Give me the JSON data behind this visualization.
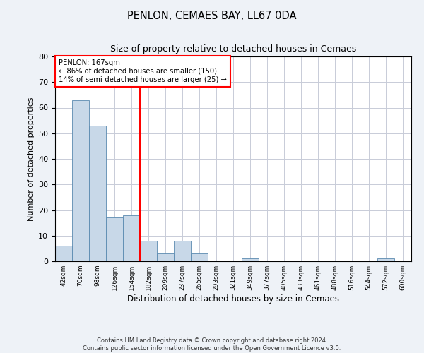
{
  "title": "PENLON, CEMAES BAY, LL67 0DA",
  "subtitle": "Size of property relative to detached houses in Cemaes",
  "xlabel": "Distribution of detached houses by size in Cemaes",
  "ylabel": "Number of detached properties",
  "bar_color": "#c8d8e8",
  "bar_edge_color": "#5a8ab0",
  "categories": [
    "42sqm",
    "70sqm",
    "98sqm",
    "126sqm",
    "154sqm",
    "182sqm",
    "209sqm",
    "237sqm",
    "265sqm",
    "293sqm",
    "321sqm",
    "349sqm",
    "377sqm",
    "405sqm",
    "433sqm",
    "461sqm",
    "488sqm",
    "516sqm",
    "544sqm",
    "572sqm",
    "600sqm"
  ],
  "values": [
    6,
    63,
    53,
    17,
    18,
    8,
    3,
    8,
    3,
    0,
    0,
    1,
    0,
    0,
    0,
    0,
    0,
    0,
    0,
    1,
    0
  ],
  "ylim": [
    0,
    80
  ],
  "yticks": [
    0,
    10,
    20,
    30,
    40,
    50,
    60,
    70,
    80
  ],
  "penlon_label": "PENLON: 167sqm",
  "annotation_line1": "← 86% of detached houses are smaller (150)",
  "annotation_line2": "14% of semi-detached houses are larger (25) →",
  "annotation_box_color": "white",
  "annotation_box_edge_color": "red",
  "vline_color": "red",
  "vline_bin_index": 4.5,
  "footer1": "Contains HM Land Registry data © Crown copyright and database right 2024.",
  "footer2": "Contains public sector information licensed under the Open Government Licence v3.0.",
  "background_color": "#eef2f7",
  "plot_bg_color": "white",
  "grid_color": "#c8ccd8"
}
